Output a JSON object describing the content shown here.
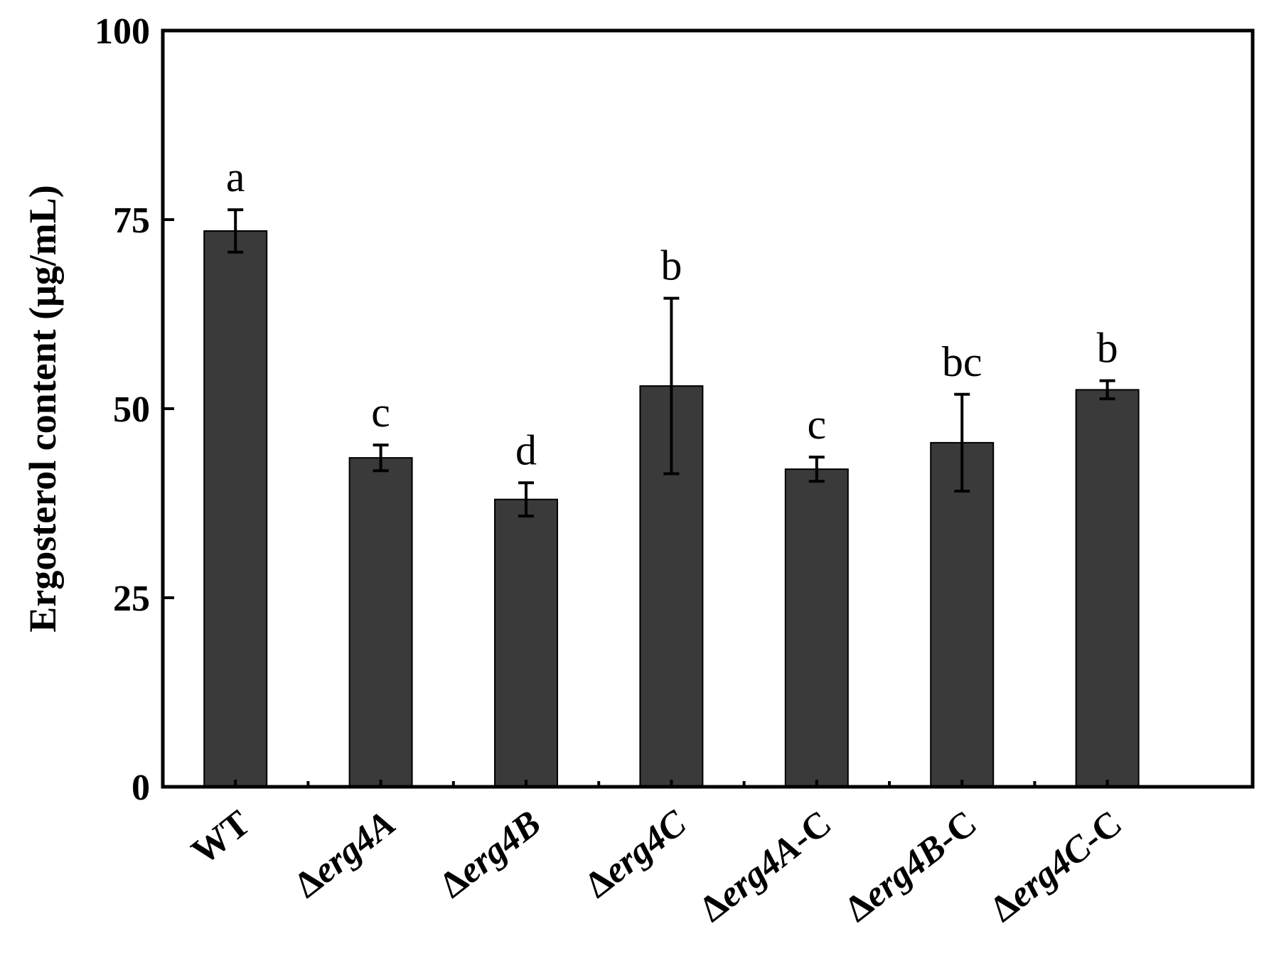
{
  "chart_data": {
    "type": "bar",
    "title": "",
    "xlabel": "",
    "ylabel": "Ergosterol content (μg/mL)",
    "ylim": [
      0,
      100
    ],
    "yticks": [
      0,
      25,
      50,
      75,
      100
    ],
    "grid": false,
    "legend": "none",
    "bar_color": "#3a3a3a",
    "categories": [
      {
        "prefix": "",
        "italic": "",
        "suffix": "WT"
      },
      {
        "prefix": "Δ",
        "italic": "erg4A",
        "suffix": ""
      },
      {
        "prefix": "Δ",
        "italic": "erg4B",
        "suffix": ""
      },
      {
        "prefix": "Δ",
        "italic": "erg4C",
        "suffix": ""
      },
      {
        "prefix": "Δ",
        "italic": "erg4A",
        "suffix": "-C"
      },
      {
        "prefix": "Δ",
        "italic": "erg4B",
        "suffix": "-C"
      },
      {
        "prefix": "Δ",
        "italic": "erg4C",
        "suffix": "-C"
      }
    ],
    "values": [
      73.5,
      43.5,
      38,
      53,
      42,
      45.5,
      52.5
    ],
    "errors": [
      2.8,
      1.7,
      2.2,
      11.6,
      1.6,
      6.4,
      1.2
    ],
    "significance": [
      "a",
      "c",
      "d",
      "b",
      "c",
      "bc",
      "b"
    ]
  }
}
